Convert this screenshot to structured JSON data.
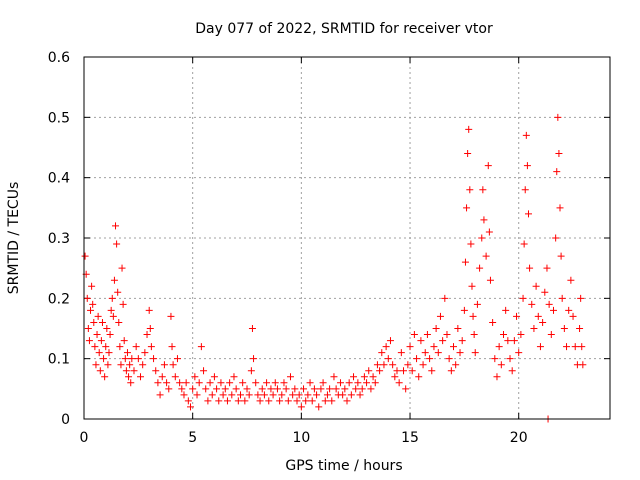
{
  "chart_data": {
    "type": "scatter",
    "title": "Day 077 of 2022, SRMTID for receiver vtor",
    "xlabel": "GPS time / hours",
    "ylabel": "SRMTID / TECUs",
    "xlim": [
      0,
      24.2
    ],
    "ylim": [
      0,
      0.6
    ],
    "xticks": [
      0,
      5,
      10,
      15,
      20
    ],
    "xtick_labels": [
      "0",
      "5",
      "10",
      "15",
      "20"
    ],
    "yticks": [
      0,
      0.1,
      0.2,
      0.3,
      0.4,
      0.5,
      0.6
    ],
    "ytick_labels": [
      "0",
      "0.1",
      "0.2",
      "0.3",
      "0.4",
      "0.5",
      "0.6"
    ],
    "grid": true,
    "marker": "plus",
    "color": "#ff0000",
    "series": [
      {
        "name": "SRMTID",
        "points": [
          [
            0.05,
            0.27
          ],
          [
            0.1,
            0.24
          ],
          [
            0.15,
            0.2
          ],
          [
            0.2,
            0.15
          ],
          [
            0.25,
            0.13
          ],
          [
            0.3,
            0.18
          ],
          [
            0.35,
            0.22
          ],
          [
            0.4,
            0.19
          ],
          [
            0.45,
            0.16
          ],
          [
            0.5,
            0.12
          ],
          [
            0.55,
            0.09
          ],
          [
            0.6,
            0.14
          ],
          [
            0.65,
            0.17
          ],
          [
            0.7,
            0.11
          ],
          [
            0.75,
            0.08
          ],
          [
            0.8,
            0.13
          ],
          [
            0.85,
            0.16
          ],
          [
            0.9,
            0.1
          ],
          [
            0.95,
            0.07
          ],
          [
            1.0,
            0.12
          ],
          [
            1.05,
            0.15
          ],
          [
            1.1,
            0.09
          ],
          [
            1.15,
            0.11
          ],
          [
            1.2,
            0.14
          ],
          [
            1.25,
            0.18
          ],
          [
            1.3,
            0.2
          ],
          [
            1.35,
            0.17
          ],
          [
            1.4,
            0.23
          ],
          [
            1.45,
            0.32
          ],
          [
            1.5,
            0.29
          ],
          [
            1.55,
            0.21
          ],
          [
            1.6,
            0.16
          ],
          [
            1.65,
            0.12
          ],
          [
            1.7,
            0.09
          ],
          [
            1.75,
            0.25
          ],
          [
            1.8,
            0.19
          ],
          [
            1.85,
            0.13
          ],
          [
            1.9,
            0.1
          ],
          [
            1.95,
            0.08
          ],
          [
            2.0,
            0.11
          ],
          [
            2.05,
            0.07
          ],
          [
            2.1,
            0.09
          ],
          [
            2.15,
            0.06
          ],
          [
            2.2,
            0.1
          ],
          [
            2.3,
            0.08
          ],
          [
            2.4,
            0.12
          ],
          [
            2.5,
            0.1
          ],
          [
            2.6,
            0.07
          ],
          [
            2.7,
            0.09
          ],
          [
            2.8,
            0.11
          ],
          [
            2.9,
            0.14
          ],
          [
            3.0,
            0.18
          ],
          [
            3.05,
            0.15
          ],
          [
            3.1,
            0.12
          ],
          [
            3.2,
            0.1
          ],
          [
            3.3,
            0.08
          ],
          [
            3.4,
            0.06
          ],
          [
            3.5,
            0.04
          ],
          [
            3.6,
            0.07
          ],
          [
            3.7,
            0.09
          ],
          [
            3.8,
            0.06
          ],
          [
            3.9,
            0.05
          ],
          [
            4.0,
            0.17
          ],
          [
            4.05,
            0.12
          ],
          [
            4.1,
            0.09
          ],
          [
            4.2,
            0.07
          ],
          [
            4.3,
            0.1
          ],
          [
            4.4,
            0.06
          ],
          [
            4.5,
            0.05
          ],
          [
            4.6,
            0.04
          ],
          [
            4.7,
            0.06
          ],
          [
            4.8,
            0.03
          ],
          [
            4.9,
            0.02
          ],
          [
            5.0,
            0.05
          ],
          [
            5.1,
            0.07
          ],
          [
            5.2,
            0.04
          ],
          [
            5.3,
            0.06
          ],
          [
            5.4,
            0.12
          ],
          [
            5.5,
            0.08
          ],
          [
            5.6,
            0.05
          ],
          [
            5.7,
            0.03
          ],
          [
            5.8,
            0.06
          ],
          [
            5.9,
            0.04
          ],
          [
            6.0,
            0.07
          ],
          [
            6.1,
            0.05
          ],
          [
            6.2,
            0.03
          ],
          [
            6.3,
            0.06
          ],
          [
            6.4,
            0.04
          ],
          [
            6.5,
            0.05
          ],
          [
            6.6,
            0.03
          ],
          [
            6.7,
            0.06
          ],
          [
            6.8,
            0.04
          ],
          [
            6.9,
            0.07
          ],
          [
            7.0,
            0.05
          ],
          [
            7.1,
            0.03
          ],
          [
            7.2,
            0.04
          ],
          [
            7.3,
            0.06
          ],
          [
            7.4,
            0.03
          ],
          [
            7.5,
            0.05
          ],
          [
            7.6,
            0.04
          ],
          [
            7.7,
            0.08
          ],
          [
            7.75,
            0.15
          ],
          [
            7.8,
            0.1
          ],
          [
            7.9,
            0.06
          ],
          [
            8.0,
            0.04
          ],
          [
            8.1,
            0.03
          ],
          [
            8.2,
            0.05
          ],
          [
            8.3,
            0.04
          ],
          [
            8.4,
            0.06
          ],
          [
            8.5,
            0.03
          ],
          [
            8.6,
            0.05
          ],
          [
            8.7,
            0.04
          ],
          [
            8.8,
            0.06
          ],
          [
            8.9,
            0.05
          ],
          [
            9.0,
            0.03
          ],
          [
            9.1,
            0.04
          ],
          [
            9.2,
            0.06
          ],
          [
            9.3,
            0.05
          ],
          [
            9.4,
            0.03
          ],
          [
            9.5,
            0.07
          ],
          [
            9.6,
            0.04
          ],
          [
            9.7,
            0.05
          ],
          [
            9.8,
            0.03
          ],
          [
            9.9,
            0.04
          ],
          [
            10.0,
            0.02
          ],
          [
            10.1,
            0.05
          ],
          [
            10.2,
            0.03
          ],
          [
            10.3,
            0.04
          ],
          [
            10.4,
            0.06
          ],
          [
            10.5,
            0.03
          ],
          [
            10.6,
            0.05
          ],
          [
            10.7,
            0.04
          ],
          [
            10.8,
            0.02
          ],
          [
            10.9,
            0.05
          ],
          [
            11.0,
            0.06
          ],
          [
            11.1,
            0.03
          ],
          [
            11.2,
            0.04
          ],
          [
            11.3,
            0.05
          ],
          [
            11.4,
            0.03
          ],
          [
            11.5,
            0.07
          ],
          [
            11.6,
            0.05
          ],
          [
            11.7,
            0.04
          ],
          [
            11.8,
            0.06
          ],
          [
            11.9,
            0.04
          ],
          [
            12.0,
            0.05
          ],
          [
            12.1,
            0.03
          ],
          [
            12.2,
            0.06
          ],
          [
            12.3,
            0.04
          ],
          [
            12.4,
            0.07
          ],
          [
            12.5,
            0.05
          ],
          [
            12.6,
            0.06
          ],
          [
            12.7,
            0.04
          ],
          [
            12.8,
            0.05
          ],
          [
            12.9,
            0.07
          ],
          [
            13.0,
            0.06
          ],
          [
            13.1,
            0.08
          ],
          [
            13.2,
            0.05
          ],
          [
            13.3,
            0.07
          ],
          [
            13.4,
            0.06
          ],
          [
            13.5,
            0.09
          ],
          [
            13.6,
            0.08
          ],
          [
            13.7,
            0.11
          ],
          [
            13.8,
            0.09
          ],
          [
            13.9,
            0.12
          ],
          [
            14.0,
            0.1
          ],
          [
            14.1,
            0.13
          ],
          [
            14.2,
            0.09
          ],
          [
            14.3,
            0.07
          ],
          [
            14.4,
            0.08
          ],
          [
            14.5,
            0.06
          ],
          [
            14.6,
            0.11
          ],
          [
            14.7,
            0.08
          ],
          [
            14.8,
            0.05
          ],
          [
            14.9,
            0.09
          ],
          [
            15.0,
            0.12
          ],
          [
            15.1,
            0.08
          ],
          [
            15.2,
            0.14
          ],
          [
            15.3,
            0.1
          ],
          [
            15.4,
            0.07
          ],
          [
            15.5,
            0.13
          ],
          [
            15.6,
            0.09
          ],
          [
            15.7,
            0.11
          ],
          [
            15.8,
            0.14
          ],
          [
            15.9,
            0.1
          ],
          [
            16.0,
            0.08
          ],
          [
            16.1,
            0.12
          ],
          [
            16.2,
            0.15
          ],
          [
            16.3,
            0.11
          ],
          [
            16.4,
            0.17
          ],
          [
            16.5,
            0.13
          ],
          [
            16.6,
            0.2
          ],
          [
            16.7,
            0.14
          ],
          [
            16.8,
            0.1
          ],
          [
            16.9,
            0.08
          ],
          [
            17.0,
            0.12
          ],
          [
            17.1,
            0.09
          ],
          [
            17.2,
            0.15
          ],
          [
            17.3,
            0.11
          ],
          [
            17.4,
            0.13
          ],
          [
            17.5,
            0.18
          ],
          [
            17.55,
            0.26
          ],
          [
            17.6,
            0.35
          ],
          [
            17.65,
            0.44
          ],
          [
            17.7,
            0.48
          ],
          [
            17.75,
            0.38
          ],
          [
            17.8,
            0.29
          ],
          [
            17.85,
            0.22
          ],
          [
            17.9,
            0.17
          ],
          [
            17.95,
            0.14
          ],
          [
            18.0,
            0.11
          ],
          [
            18.1,
            0.19
          ],
          [
            18.2,
            0.25
          ],
          [
            18.3,
            0.3
          ],
          [
            18.35,
            0.38
          ],
          [
            18.4,
            0.33
          ],
          [
            18.5,
            0.27
          ],
          [
            18.6,
            0.42
          ],
          [
            18.65,
            0.31
          ],
          [
            18.7,
            0.23
          ],
          [
            18.8,
            0.16
          ],
          [
            18.9,
            0.1
          ],
          [
            19.0,
            0.07
          ],
          [
            19.1,
            0.12
          ],
          [
            19.2,
            0.09
          ],
          [
            19.3,
            0.14
          ],
          [
            19.4,
            0.18
          ],
          [
            19.5,
            0.13
          ],
          [
            19.6,
            0.1
          ],
          [
            19.7,
            0.08
          ],
          [
            19.8,
            0.13
          ],
          [
            19.9,
            0.17
          ],
          [
            20.0,
            0.11
          ],
          [
            20.1,
            0.14
          ],
          [
            20.2,
            0.2
          ],
          [
            20.25,
            0.29
          ],
          [
            20.3,
            0.38
          ],
          [
            20.35,
            0.47
          ],
          [
            20.4,
            0.42
          ],
          [
            20.45,
            0.34
          ],
          [
            20.5,
            0.25
          ],
          [
            20.6,
            0.19
          ],
          [
            20.7,
            0.15
          ],
          [
            20.8,
            0.22
          ],
          [
            20.9,
            0.17
          ],
          [
            21.0,
            0.12
          ],
          [
            21.1,
            0.16
          ],
          [
            21.2,
            0.21
          ],
          [
            21.3,
            0.25
          ],
          [
            21.4,
            0.19
          ],
          [
            21.5,
            0.14
          ],
          [
            21.6,
            0.18
          ],
          [
            21.7,
            0.3
          ],
          [
            21.75,
            0.41
          ],
          [
            21.8,
            0.5
          ],
          [
            21.85,
            0.44
          ],
          [
            21.9,
            0.35
          ],
          [
            21.95,
            0.27
          ],
          [
            22.0,
            0.2
          ],
          [
            22.1,
            0.15
          ],
          [
            22.2,
            0.12
          ],
          [
            22.3,
            0.18
          ],
          [
            22.4,
            0.23
          ],
          [
            22.5,
            0.17
          ],
          [
            22.6,
            0.12
          ],
          [
            22.7,
            0.09
          ],
          [
            22.8,
            0.15
          ],
          [
            22.85,
            0.2
          ],
          [
            22.9,
            0.12
          ],
          [
            22.95,
            0.09
          ],
          [
            21.35,
            0.0
          ]
        ]
      }
    ]
  }
}
